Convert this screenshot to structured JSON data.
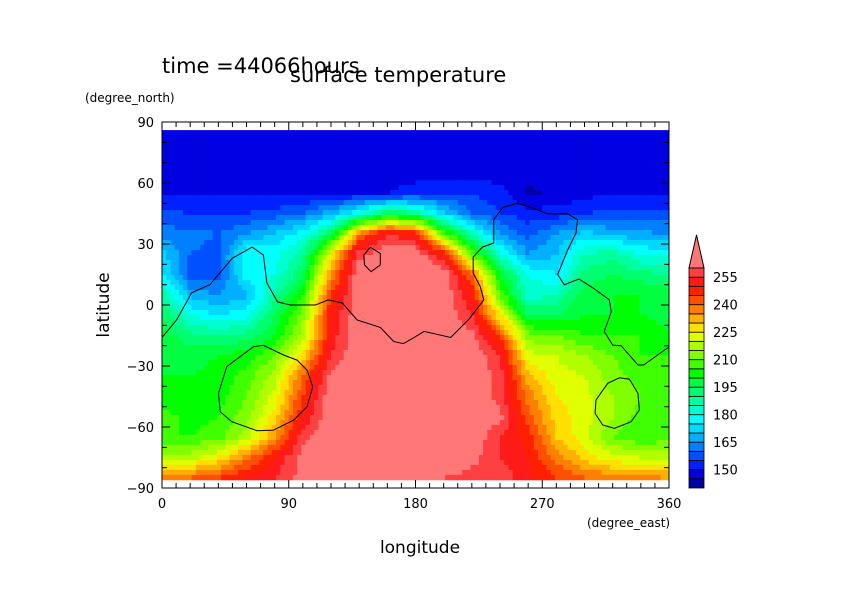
{
  "chart_data": {
    "type": "heatmap",
    "title": "surface temperature",
    "subtitle": "time =44066hours",
    "xlabel": "longitude",
    "ylabel": "latitude",
    "x_units": "(degree_east)",
    "y_units": "(degree_north)",
    "xlim": [
      0,
      360
    ],
    "ylim": [
      -90,
      90
    ],
    "data_lat_extent": [
      -86,
      86
    ],
    "x_ticks": [
      0,
      90,
      180,
      270,
      360
    ],
    "x_tick_labels": [
      "0",
      "90",
      "180",
      "270",
      "360"
    ],
    "y_ticks": [
      90,
      60,
      30,
      0,
      -30,
      -60,
      -90
    ],
    "y_tick_labels": [
      "90",
      "60",
      "30",
      "0",
      "−30",
      "−60",
      "−90"
    ],
    "minor_tick_step": 10,
    "grid_lon": [
      0,
      20,
      40,
      60,
      80,
      100,
      120,
      140,
      160,
      180,
      200,
      220,
      240,
      260,
      280,
      300,
      320,
      340,
      360
    ],
    "grid_lat": [
      85,
      75,
      65,
      55,
      45,
      35,
      25,
      15,
      5,
      -5,
      -15,
      -25,
      -35,
      -45,
      -55,
      -65,
      -75,
      -85
    ],
    "values": [
      [
        145,
        145,
        145,
        145,
        145,
        145,
        145,
        145,
        145,
        145,
        145,
        145,
        145,
        145,
        145,
        145,
        145,
        145,
        145
      ],
      [
        148,
        148,
        148,
        148,
        148,
        148,
        148,
        148,
        148,
        148,
        148,
        148,
        148,
        148,
        148,
        148,
        148,
        148,
        148
      ],
      [
        148,
        148,
        148,
        148,
        148,
        148,
        148,
        148,
        148,
        148,
        148,
        148,
        147,
        146,
        147,
        148,
        148,
        148,
        148
      ],
      [
        149,
        149,
        149,
        149,
        149,
        149,
        149,
        149,
        150,
        152,
        155,
        155,
        152,
        144,
        146,
        148,
        150,
        150,
        150
      ],
      [
        156,
        155,
        154,
        155,
        157,
        160,
        168,
        180,
        195,
        190,
        172,
        160,
        155,
        152,
        152,
        155,
        156,
        156,
        156
      ],
      [
        162,
        162,
        160,
        165,
        170,
        178,
        195,
        238,
        255,
        250,
        210,
        185,
        165,
        158,
        165,
        172,
        168,
        166,
        165
      ],
      [
        172,
        160,
        158,
        180,
        178,
        188,
        225,
        258,
        265,
        265,
        250,
        210,
        182,
        165,
        170,
        185,
        188,
        180,
        178
      ],
      [
        175,
        158,
        158,
        178,
        180,
        195,
        235,
        265,
        265,
        265,
        265,
        240,
        200,
        180,
        175,
        192,
        195,
        192,
        190
      ],
      [
        188,
        168,
        165,
        168,
        188,
        205,
        245,
        265,
        265,
        265,
        265,
        250,
        210,
        182,
        185,
        198,
        200,
        200,
        200
      ],
      [
        195,
        180,
        175,
        178,
        195,
        212,
        250,
        265,
        265,
        265,
        265,
        255,
        225,
        195,
        195,
        200,
        200,
        200,
        198
      ],
      [
        198,
        192,
        190,
        192,
        200,
        218,
        252,
        265,
        265,
        265,
        265,
        262,
        245,
        212,
        210,
        205,
        205,
        205,
        200
      ],
      [
        198,
        198,
        200,
        203,
        210,
        228,
        255,
        265,
        265,
        265,
        265,
        265,
        255,
        222,
        220,
        215,
        210,
        205,
        205
      ],
      [
        200,
        200,
        202,
        207,
        218,
        240,
        262,
        265,
        265,
        265,
        265,
        265,
        258,
        232,
        222,
        220,
        212,
        208,
        205
      ],
      [
        200,
        200,
        203,
        210,
        222,
        245,
        265,
        265,
        265,
        265,
        265,
        265,
        258,
        238,
        225,
        222,
        215,
        210,
        208
      ],
      [
        208,
        203,
        205,
        213,
        228,
        250,
        265,
        265,
        265,
        265,
        265,
        265,
        262,
        242,
        228,
        222,
        215,
        208,
        208
      ],
      [
        205,
        205,
        208,
        218,
        235,
        258,
        265,
        265,
        265,
        265,
        265,
        265,
        255,
        248,
        230,
        222,
        210,
        205,
        208
      ],
      [
        215,
        218,
        225,
        238,
        250,
        262,
        265,
        265,
        265,
        265,
        265,
        262,
        255,
        250,
        238,
        228,
        222,
        220,
        220
      ],
      [
        240,
        240,
        245,
        250,
        255,
        262,
        262,
        262,
        262,
        262,
        260,
        258,
        258,
        252,
        245,
        240,
        238,
        236,
        235
      ]
    ],
    "levels_min": 140,
    "level_step": 5,
    "colorbar_labels": [
      "255",
      "240",
      "225",
      "210",
      "195",
      "180",
      "165",
      "150"
    ],
    "colorbar_label_values": [
      255,
      240,
      225,
      210,
      195,
      180,
      165,
      150
    ],
    "colors": [
      "#0000a8",
      "#0000e0",
      "#0020ff",
      "#0050ff",
      "#0080ff",
      "#00b0ff",
      "#00d8ff",
      "#00ffff",
      "#00ffd0",
      "#00ffa0",
      "#00ff70",
      "#00ff40",
      "#00ff00",
      "#40ff00",
      "#80ff00",
      "#b0ff00",
      "#e0ff00",
      "#ffe000",
      "#ffb000",
      "#ff8000",
      "#ff5000",
      "#ff2000",
      "#ff1a1a",
      "#ff4040"
    ],
    "over_color": "#ff7777",
    "coastlines": [
      [
        [
          0,
          -16
        ],
        [
          10.4,
          -7.4
        ],
        [
          21,
          6
        ],
        [
          34,
          10
        ],
        [
          50,
          23
        ],
        [
          64,
          28.5
        ],
        [
          72,
          24.6
        ],
        [
          74.5,
          10.8
        ],
        [
          82,
          1.5
        ],
        [
          91,
          0
        ],
        [
          109,
          0
        ],
        [
          118,
          2.5
        ],
        [
          128,
          1
        ],
        [
          138.5,
          -7.4
        ],
        [
          155,
          -11
        ],
        [
          164.6,
          -18
        ],
        [
          171.5,
          -19
        ],
        [
          179,
          -16
        ],
        [
          186,
          -13
        ],
        [
          205,
          -16
        ],
        [
          218,
          -7
        ],
        [
          228.5,
          2.5
        ],
        [
          226,
          9
        ],
        [
          221,
          15.7
        ],
        [
          221,
          23.6
        ],
        [
          227.5,
          28.5
        ],
        [
          235.6,
          30.5
        ],
        [
          235.6,
          42
        ],
        [
          242,
          48
        ],
        [
          252.5,
          50
        ],
        [
          262,
          48
        ],
        [
          274,
          44.8
        ],
        [
          288,
          44.8
        ],
        [
          295,
          42
        ],
        [
          294,
          35.4
        ],
        [
          288,
          27
        ],
        [
          281,
          15
        ],
        [
          285.6,
          10
        ],
        [
          296,
          12.8
        ],
        [
          306,
          8.4
        ],
        [
          317.6,
          2.5
        ],
        [
          319,
          -3.4
        ],
        [
          314,
          -13
        ],
        [
          320,
          -19.7
        ],
        [
          326,
          -20
        ],
        [
          338,
          -29.5
        ],
        [
          342,
          -29.5
        ],
        [
          360,
          -20.6
        ]
      ],
      [
        [
          143.3,
          24.6
        ],
        [
          148,
          28.4
        ],
        [
          155,
          25.4
        ],
        [
          155,
          19.7
        ],
        [
          148.5,
          16.4
        ],
        [
          143.8,
          19.7
        ],
        [
          143.3,
          24.6
        ]
      ],
      [
        [
          40.1,
          -43.4
        ],
        [
          46,
          -30.3
        ],
        [
          65,
          -20.5
        ],
        [
          72.1,
          -19.8
        ],
        [
          86.3,
          -24.6
        ],
        [
          95.9,
          -27.1
        ],
        [
          103,
          -32
        ],
        [
          107,
          -40.2
        ],
        [
          103,
          -50
        ],
        [
          93.5,
          -56.6
        ],
        [
          79.2,
          -61.5
        ],
        [
          67.4,
          -61.8
        ],
        [
          49.6,
          -57.4
        ],
        [
          41.3,
          -52.5
        ],
        [
          40.1,
          -43.4
        ]
      ],
      [
        [
          308.2,
          -46.7
        ],
        [
          316.5,
          -38.5
        ],
        [
          324.8,
          -35.8
        ],
        [
          331.9,
          -36.5
        ],
        [
          337.9,
          -43.4
        ],
        [
          339,
          -51.6
        ],
        [
          333.1,
          -57.4
        ],
        [
          321.2,
          -60.7
        ],
        [
          312.9,
          -59
        ],
        [
          307.5,
          -53.3
        ],
        [
          308.2,
          -46.7
        ]
      ]
    ]
  }
}
